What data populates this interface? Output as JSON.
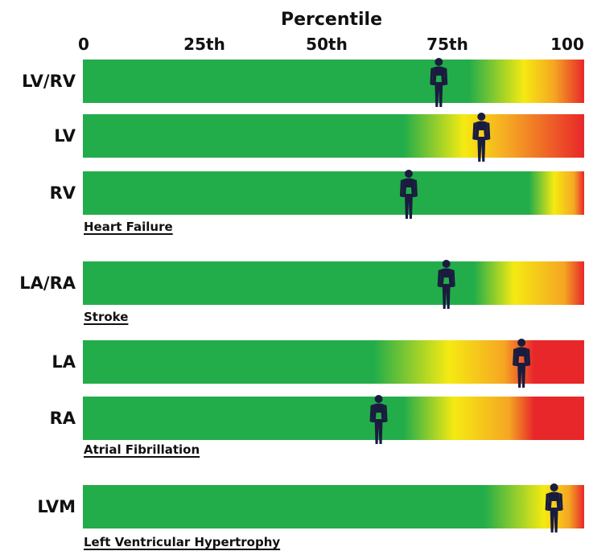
{
  "chart_data": {
    "type": "bar",
    "title": "Percentile",
    "xlabel": "Percentile",
    "xlim": [
      0,
      100
    ],
    "ticks": [
      "0",
      "25th",
      "50th",
      "75th",
      "100"
    ],
    "tick_values": [
      0,
      25,
      50,
      75,
      100
    ],
    "colors": {
      "green": "#22ad4a",
      "yellow": "#f5ea12",
      "orange": "#f5a623",
      "red": "#e8272a",
      "figure": "#1a1c3f"
    },
    "rows": [
      {
        "label": "LV/RV",
        "value": 71,
        "gradient": [
          [
            0,
            "green"
          ],
          [
            77,
            "green"
          ],
          [
            88,
            "yellow"
          ],
          [
            94,
            "orange"
          ],
          [
            100,
            "red"
          ]
        ]
      },
      {
        "label": "LV",
        "value": 79.5,
        "gradient": [
          [
            0,
            "green"
          ],
          [
            64,
            "green"
          ],
          [
            76,
            "yellow"
          ],
          [
            85,
            "orange"
          ],
          [
            100,
            "red"
          ]
        ]
      },
      {
        "label": "RV",
        "value": 65,
        "gradient": [
          [
            0,
            "green"
          ],
          [
            89,
            "green"
          ],
          [
            94,
            "yellow"
          ],
          [
            98,
            "orange"
          ],
          [
            100,
            "red"
          ]
        ]
      },
      {
        "label": "LA/RA",
        "value": 72.5,
        "gradient": [
          [
            0,
            "green"
          ],
          [
            78,
            "green"
          ],
          [
            86,
            "yellow"
          ],
          [
            96,
            "orange"
          ],
          [
            100,
            "red"
          ]
        ]
      },
      {
        "label": "LA",
        "value": 87.5,
        "gradient": [
          [
            0,
            "green"
          ],
          [
            58,
            "green"
          ],
          [
            73,
            "yellow"
          ],
          [
            84,
            "orange"
          ],
          [
            90,
            "red"
          ],
          [
            100,
            "red"
          ]
        ]
      },
      {
        "label": "RA",
        "value": 59,
        "gradient": [
          [
            0,
            "green"
          ],
          [
            64,
            "green"
          ],
          [
            74,
            "yellow"
          ],
          [
            85,
            "orange"
          ],
          [
            90,
            "red"
          ],
          [
            100,
            "red"
          ]
        ]
      },
      {
        "label": "LVM",
        "value": 94,
        "gradient": [
          [
            0,
            "green"
          ],
          [
            80,
            "green"
          ],
          [
            92,
            "yellow"
          ],
          [
            97,
            "orange"
          ],
          [
            100,
            "red"
          ]
        ]
      }
    ],
    "group_labels": [
      {
        "text": "Heart Failure",
        "after_row": 2
      },
      {
        "text": "Stroke",
        "after_row": 3
      },
      {
        "text": "Atrial Fibrillation",
        "after_row": 5
      },
      {
        "text": "Left Ventricular Hypertrophy",
        "after_row": 6
      }
    ]
  }
}
